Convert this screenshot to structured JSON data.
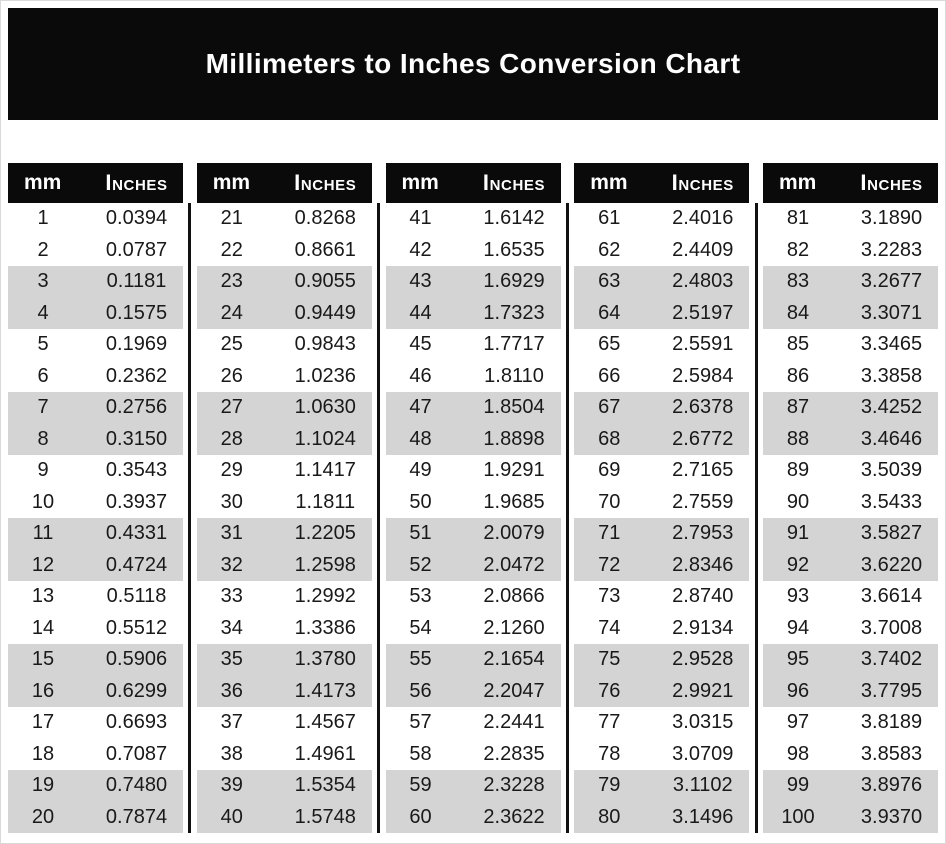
{
  "title": "Millimeters to Inches Conversion Chart",
  "table_header": {
    "mm": "mm",
    "inches": "Inches"
  },
  "colors": {
    "banner_bg": "#0a0a0a",
    "header_bg": "#0a0a0a",
    "row_shade": "#d4d4d4",
    "divider": "#111111",
    "text_dark": "#191919",
    "text_light": "#ffffff"
  },
  "chart_data": {
    "type": "table",
    "title": "Millimeters to Inches Conversion Chart",
    "columns": [
      "mm",
      "Inches"
    ],
    "layout": {
      "blocks": 5,
      "rows_per_block": 20,
      "row_shading": "alternating pairs: two white rows then two gray rows",
      "legend_position": "none",
      "grid": "off"
    },
    "blocks": [
      {
        "mm_start": 1,
        "mm_end": 20,
        "rows": [
          [
            "1",
            "0.0394"
          ],
          [
            "2",
            "0.0787"
          ],
          [
            "3",
            "0.1181"
          ],
          [
            "4",
            "0.1575"
          ],
          [
            "5",
            "0.1969"
          ],
          [
            "6",
            "0.2362"
          ],
          [
            "7",
            "0.2756"
          ],
          [
            "8",
            "0.3150"
          ],
          [
            "9",
            "0.3543"
          ],
          [
            "10",
            "0.3937"
          ],
          [
            "11",
            "0.4331"
          ],
          [
            "12",
            "0.4724"
          ],
          [
            "13",
            "0.5118"
          ],
          [
            "14",
            "0.5512"
          ],
          [
            "15",
            "0.5906"
          ],
          [
            "16",
            "0.6299"
          ],
          [
            "17",
            "0.6693"
          ],
          [
            "18",
            "0.7087"
          ],
          [
            "19",
            "0.7480"
          ],
          [
            "20",
            "0.7874"
          ]
        ]
      },
      {
        "mm_start": 21,
        "mm_end": 40,
        "rows": [
          [
            "21",
            "0.8268"
          ],
          [
            "22",
            "0.8661"
          ],
          [
            "23",
            "0.9055"
          ],
          [
            "24",
            "0.9449"
          ],
          [
            "25",
            "0.9843"
          ],
          [
            "26",
            "1.0236"
          ],
          [
            "27",
            "1.0630"
          ],
          [
            "28",
            "1.1024"
          ],
          [
            "29",
            "1.1417"
          ],
          [
            "30",
            "1.1811"
          ],
          [
            "31",
            "1.2205"
          ],
          [
            "32",
            "1.2598"
          ],
          [
            "33",
            "1.2992"
          ],
          [
            "34",
            "1.3386"
          ],
          [
            "35",
            "1.3780"
          ],
          [
            "36",
            "1.4173"
          ],
          [
            "37",
            "1.4567"
          ],
          [
            "38",
            "1.4961"
          ],
          [
            "39",
            "1.5354"
          ],
          [
            "40",
            "1.5748"
          ]
        ]
      },
      {
        "mm_start": 41,
        "mm_end": 60,
        "rows": [
          [
            "41",
            "1.6142"
          ],
          [
            "42",
            "1.6535"
          ],
          [
            "43",
            "1.6929"
          ],
          [
            "44",
            "1.7323"
          ],
          [
            "45",
            "1.7717"
          ],
          [
            "46",
            "1.8110"
          ],
          [
            "47",
            "1.8504"
          ],
          [
            "48",
            "1.8898"
          ],
          [
            "49",
            "1.9291"
          ],
          [
            "50",
            "1.9685"
          ],
          [
            "51",
            "2.0079"
          ],
          [
            "52",
            "2.0472"
          ],
          [
            "53",
            "2.0866"
          ],
          [
            "54",
            "2.1260"
          ],
          [
            "55",
            "2.1654"
          ],
          [
            "56",
            "2.2047"
          ],
          [
            "57",
            "2.2441"
          ],
          [
            "58",
            "2.2835"
          ],
          [
            "59",
            "2.3228"
          ],
          [
            "60",
            "2.3622"
          ]
        ]
      },
      {
        "mm_start": 61,
        "mm_end": 80,
        "rows": [
          [
            "61",
            "2.4016"
          ],
          [
            "62",
            "2.4409"
          ],
          [
            "63",
            "2.4803"
          ],
          [
            "64",
            "2.5197"
          ],
          [
            "65",
            "2.5591"
          ],
          [
            "66",
            "2.5984"
          ],
          [
            "67",
            "2.6378"
          ],
          [
            "68",
            "2.6772"
          ],
          [
            "69",
            "2.7165"
          ],
          [
            "70",
            "2.7559"
          ],
          [
            "71",
            "2.7953"
          ],
          [
            "72",
            "2.8346"
          ],
          [
            "73",
            "2.8740"
          ],
          [
            "74",
            "2.9134"
          ],
          [
            "75",
            "2.9528"
          ],
          [
            "76",
            "2.9921"
          ],
          [
            "77",
            "3.0315"
          ],
          [
            "78",
            "3.0709"
          ],
          [
            "79",
            "3.1102"
          ],
          [
            "80",
            "3.1496"
          ]
        ]
      },
      {
        "mm_start": 81,
        "mm_end": 100,
        "rows": [
          [
            "81",
            "3.1890"
          ],
          [
            "82",
            "3.2283"
          ],
          [
            "83",
            "3.2677"
          ],
          [
            "84",
            "3.3071"
          ],
          [
            "85",
            "3.3465"
          ],
          [
            "86",
            "3.3858"
          ],
          [
            "87",
            "3.4252"
          ],
          [
            "88",
            "3.4646"
          ],
          [
            "89",
            "3.5039"
          ],
          [
            "90",
            "3.5433"
          ],
          [
            "91",
            "3.5827"
          ],
          [
            "92",
            "3.6220"
          ],
          [
            "93",
            "3.6614"
          ],
          [
            "94",
            "3.7008"
          ],
          [
            "95",
            "3.7402"
          ],
          [
            "96",
            "3.7795"
          ],
          [
            "97",
            "3.8189"
          ],
          [
            "98",
            "3.8583"
          ],
          [
            "99",
            "3.8976"
          ],
          [
            "100",
            "3.9370"
          ]
        ]
      }
    ]
  }
}
